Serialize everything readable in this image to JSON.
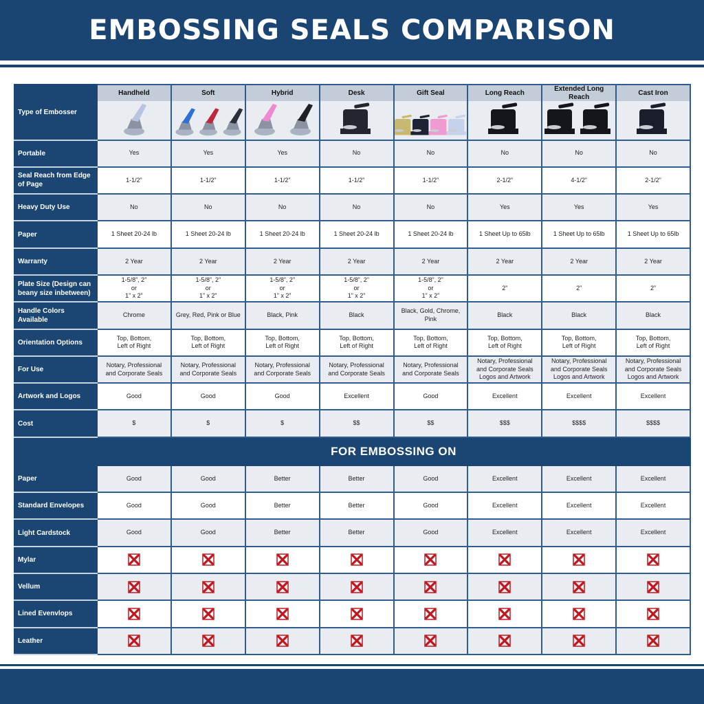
{
  "title": "EMBOSSING SEALS COMPARISON",
  "colors": {
    "brand": "#1a4573",
    "no_icon": "#c0161e",
    "cell_gray": "#e9edf1",
    "header_gray": "#c3cdd9"
  },
  "image_row_label": "Type of Embosser",
  "columns": [
    {
      "name": "Handheld",
      "image": "handheld-embosser-image",
      "image_colors": [
        "#b8c4e0"
      ]
    },
    {
      "name": "Soft",
      "image": "soft-embosser-image",
      "image_colors": [
        "#2f6fd6",
        "#c0283a",
        "#2b2f3a"
      ]
    },
    {
      "name": "Hybrid",
      "image": "hybrid-embosser-image",
      "image_colors": [
        "#f08ad0",
        "#1e2026"
      ]
    },
    {
      "name": "Desk",
      "image": "desk-embosser-image",
      "image_colors": [
        "#23262e"
      ]
    },
    {
      "name": "Gift Seal",
      "image": "gift-seal-embosser-image",
      "image_colors": [
        "#c9b870",
        "#1d2333",
        "#f09ad2",
        "#c6d2ec"
      ]
    },
    {
      "name": "Long Reach",
      "image": "long-reach-embosser-image",
      "image_colors": [
        "#14161c"
      ]
    },
    {
      "name": "Extended Long Reach",
      "image": "extended-long-reach-embosser-image",
      "image_colors": [
        "#14161c",
        "#14161c"
      ]
    },
    {
      "name": "Cast Iron",
      "image": "cast-iron-embosser-image",
      "image_colors": [
        "#1a1d2b"
      ]
    }
  ],
  "rows": [
    {
      "label": "Portable",
      "values": [
        "Yes",
        "Yes",
        "Yes",
        "No",
        "No",
        "No",
        "No",
        "No"
      ]
    },
    {
      "label": "Seal Reach from Edge of Page",
      "values": [
        "1-1/2”",
        "1-1/2”",
        "1-1/2”",
        "1-1/2”",
        "1-1/2”",
        "2-1/2”",
        "4-1/2”",
        "2-1/2”"
      ]
    },
    {
      "label": "Heavy Duty Use",
      "values": [
        "No",
        "No",
        "No",
        "No",
        "No",
        "Yes",
        "Yes",
        "Yes"
      ]
    },
    {
      "label": "Paper",
      "values": [
        "1 Sheet 20-24 lb",
        "1 Sheet 20-24 lb",
        "1 Sheet 20-24 lb",
        "1 Sheet 20-24 lb",
        "1 Sheet 20-24 lb",
        "1 Sheet Up to 65lb",
        "1 Sheet Up to 65lb",
        "1 Sheet Up to 65lb"
      ]
    },
    {
      "label": "Warranty",
      "values": [
        "2 Year",
        "2 Year",
        "2 Year",
        "2 Year",
        "2 Year",
        "2 Year",
        "2 Year",
        "2 Year"
      ]
    },
    {
      "label": "Plate Size (Design can beany size inbetween)",
      "values": [
        "1-5/8”, 2”\nor\n1” x 2”",
        "1-5/8”, 2”\nor\n1” x 2”",
        "1-5/8”, 2”\nor\n1” x 2”",
        "1-5/8”, 2”\nor\n1” x 2”",
        "1-5/8”, 2”\nor\n1” x 2”",
        "2”",
        "2”",
        "2”"
      ]
    },
    {
      "label": "Handle Colors Available",
      "values": [
        "Chrome",
        "Grey, Red, Pink or Blue",
        "Black, Pink",
        "Black",
        "Black, Gold, Chrome, Pink",
        "Black",
        "Black",
        "Black"
      ]
    },
    {
      "label": "Orientation Options",
      "values": [
        "Top, Bottom,\nLeft of Right",
        "Top, Bottom,\nLeft of Right",
        "Top, Bottom,\nLeft of Right",
        "Top, Bottom,\nLeft of Right",
        "Top, Bottom,\nLeft of Right",
        "Top, Bottom,\nLeft of Right",
        "Top, Bottom,\nLeft of Right",
        "Top, Bottom,\nLeft of Right"
      ]
    },
    {
      "label": "For Use",
      "values": [
        "Notary, Professional\nand Corporate Seals",
        "Notary, Professional\nand Corporate Seals",
        "Notary, Professional\nand Corporate Seals",
        "Notary, Professional\nand Corporate Seals",
        "Notary, Professional\nand Corporate Seals",
        "Notary, Professional\nand Corporate Seals\nLogos and Artwork",
        "Notary, Professional\nand Corporate Seals\nLogos and Artwork",
        "Notary, Professional\nand Corporate Seals\nLogos and Artwork"
      ]
    },
    {
      "label": "Artwork and Logos",
      "values": [
        "Good",
        "Good",
        "Good",
        "Excellent",
        "Good",
        "Excellent",
        "Excellent",
        "Excellent"
      ]
    },
    {
      "label": "Cost",
      "values": [
        "$",
        "$",
        "$",
        "$$",
        "$$",
        "$$$",
        "$$$$",
        "$$$$"
      ]
    }
  ],
  "section_title": "FOR EMBOSSING ON",
  "embossing_rows": [
    {
      "label": "Paper",
      "values": [
        "Good",
        "Good",
        "Better",
        "Better",
        "Good",
        "Excellent",
        "Excellent",
        "Excellent"
      ]
    },
    {
      "label": "Standard Envelopes",
      "values": [
        "Good",
        "Good",
        "Better",
        "Better",
        "Good",
        "Excellent",
        "Excellent",
        "Excellent"
      ]
    },
    {
      "label": "Light Cardstock",
      "values": [
        "Good",
        "Good",
        "Better",
        "Better",
        "Good",
        "Excellent",
        "Excellent",
        "Excellent"
      ]
    },
    {
      "label": "Mylar",
      "values": [
        "x-icon",
        "x-icon",
        "x-icon",
        "x-icon",
        "x-icon",
        "x-icon",
        "x-icon",
        "x-icon"
      ]
    },
    {
      "label": "Vellum",
      "values": [
        "x-icon",
        "x-icon",
        "x-icon",
        "x-icon",
        "x-icon",
        "x-icon",
        "x-icon",
        "x-icon"
      ]
    },
    {
      "label": "Lined Evenvlops",
      "values": [
        "x-icon",
        "x-icon",
        "x-icon",
        "x-icon",
        "x-icon",
        "x-icon",
        "x-icon",
        "x-icon"
      ]
    },
    {
      "label": "Leather",
      "values": [
        "x-icon",
        "x-icon",
        "x-icon",
        "x-icon",
        "x-icon",
        "x-icon",
        "x-icon",
        "x-icon"
      ]
    }
  ]
}
